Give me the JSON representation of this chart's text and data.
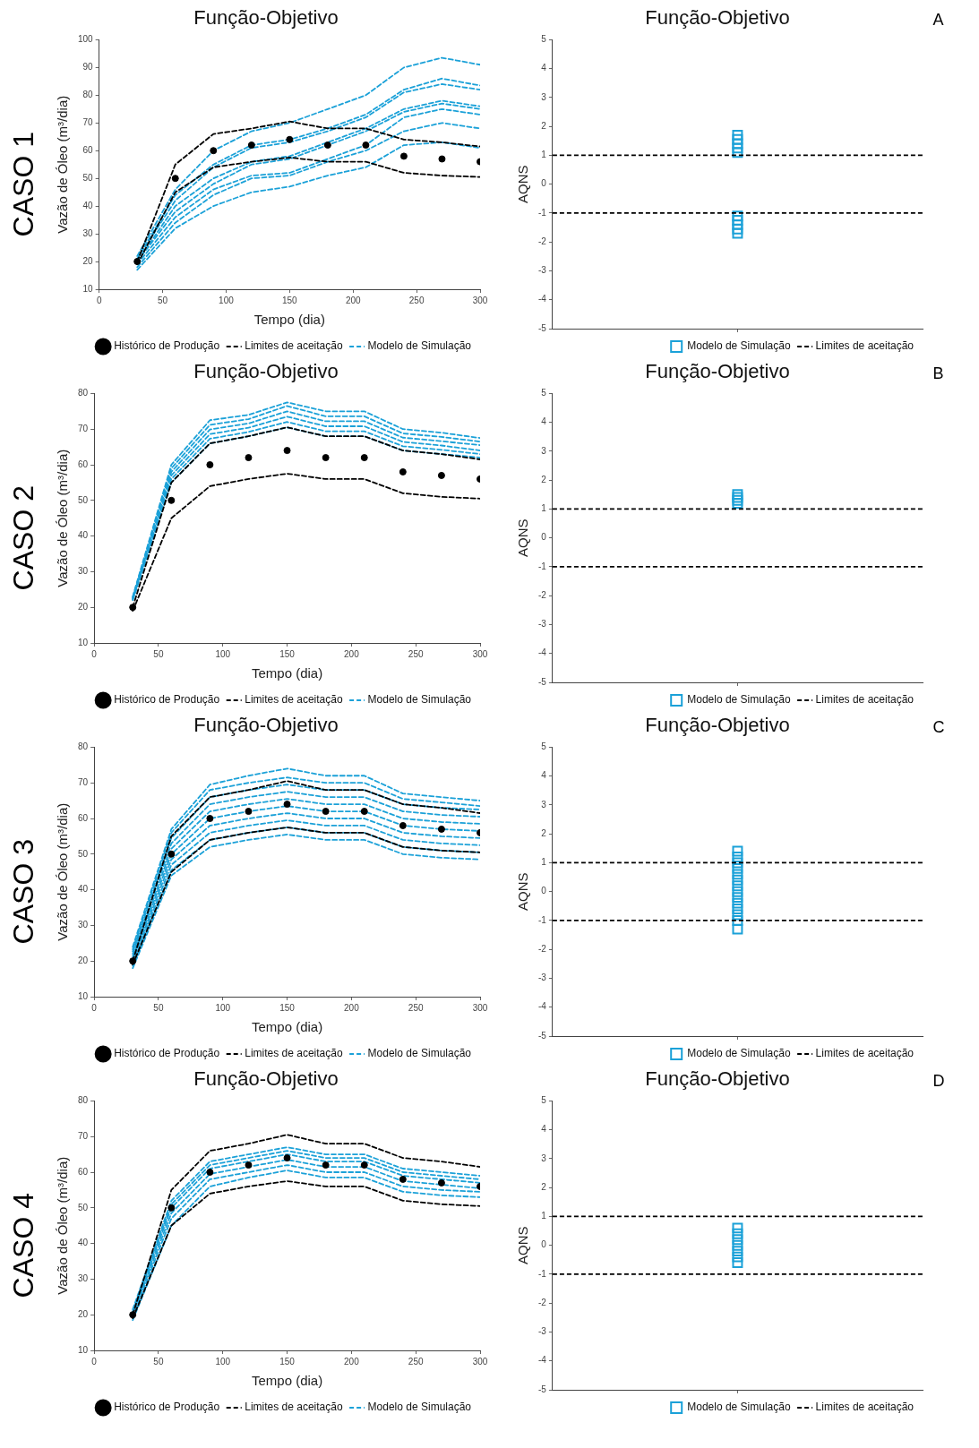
{
  "chart_data": [
    {
      "type": "line",
      "title": "Função-Objetivo",
      "xlabel": "Tempo (dia)",
      "ylabel": "Vazão de Óleo (m³/dia)",
      "annotations": [
        "CASO 1"
      ],
      "x": [
        30,
        60,
        90,
        120,
        150,
        180,
        210,
        240,
        270,
        300
      ],
      "xlim": [
        0,
        300
      ],
      "xticks": [
        0,
        50,
        100,
        150,
        200,
        250,
        300
      ],
      "ylim": [
        10,
        100
      ],
      "yticks": [
        10,
        20,
        30,
        40,
        50,
        60,
        70,
        80,
        90,
        100
      ],
      "grid": false,
      "legend": "bottom right",
      "series": [
        {
          "name": "Histórico de Produção",
          "type": "scatter",
          "marker": "circle",
          "color": "#000000",
          "values": [
            20,
            50,
            60,
            62,
            64,
            62,
            62,
            58,
            57,
            56
          ]
        },
        {
          "name": "Limites de aceitação",
          "line_style": "dashed",
          "color": "#000000",
          "values": [
            20,
            55,
            66,
            68,
            70.5,
            68,
            68,
            64,
            63,
            61.5
          ]
        },
        {
          "line_style": "dashed",
          "color": "#000000",
          "values": [
            19,
            45,
            54,
            56,
            57.5,
            56,
            56,
            52,
            51,
            50.5
          ]
        },
        {
          "name": "Modelo de Simulação",
          "line_style": "dashed",
          "color": "#1ba1d8",
          "values": [
            22,
            46,
            60,
            67,
            70,
            75,
            80,
            90,
            93.5,
            91
          ]
        },
        {
          "line_style": "dashed",
          "color": "#1ba1d8",
          "values": [
            21,
            44,
            55,
            62,
            64,
            68,
            73,
            82,
            86,
            83.5
          ]
        },
        {
          "line_style": "dashed",
          "color": "#1ba1d8",
          "values": [
            21,
            42,
            54,
            61,
            63,
            67,
            72,
            81,
            84,
            82
          ]
        },
        {
          "line_style": "dashed",
          "color": "#1ba1d8",
          "values": [
            20,
            40,
            50,
            56,
            58,
            63,
            68,
            75,
            78,
            76
          ]
        },
        {
          "line_style": "dashed",
          "color": "#1ba1d8",
          "values": [
            20,
            38,
            48,
            55,
            57,
            62,
            67,
            74,
            77,
            75
          ]
        },
        {
          "line_style": "dashed",
          "color": "#1ba1d8",
          "values": [
            19,
            36,
            46,
            51,
            52,
            57,
            62,
            72,
            75,
            73
          ]
        },
        {
          "line_style": "dashed",
          "color": "#1ba1d8",
          "values": [
            18,
            34,
            44,
            50,
            51,
            56,
            60,
            67,
            70,
            68
          ]
        },
        {
          "line_style": "dashed",
          "color": "#1ba1d8",
          "values": [
            17,
            32,
            40,
            45,
            47,
            51,
            54,
            62,
            63,
            61
          ]
        }
      ]
    },
    {
      "type": "scatter",
      "title": "Função-Objetivo",
      "ylabel": "AQNS",
      "annotations": [
        "A"
      ],
      "categories": [
        null
      ],
      "ylim": [
        -5,
        5
      ],
      "yticks": [
        -5,
        -4,
        -3,
        -2,
        -1,
        0,
        1,
        2,
        3,
        4,
        5
      ],
      "tick_labels": "y",
      "grid": false,
      "legend": "bottom right",
      "marker": "square",
      "ref_lines": [
        {
          "axis": "y",
          "value": 1,
          "label": "Limites de aceitação",
          "color": "#000000",
          "line_style": "dashed"
        },
        {
          "axis": "y",
          "value": -1,
          "color": "#000000",
          "line_style": "dashed"
        }
      ],
      "series": [
        {
          "name": "Modelo de Simulação",
          "color": "#1ba1d8",
          "values": [
            1.1
          ]
        },
        {
          "color": "#1ba1d8",
          "values": [
            1.25
          ]
        },
        {
          "color": "#1ba1d8",
          "values": [
            1.4
          ]
        },
        {
          "color": "#1ba1d8",
          "values": [
            1.55
          ]
        },
        {
          "color": "#1ba1d8",
          "values": [
            1.7
          ]
        },
        {
          "color": "#1ba1d8",
          "values": [
            -1.1
          ]
        },
        {
          "color": "#1ba1d8",
          "values": [
            -1.25
          ]
        },
        {
          "color": "#1ba1d8",
          "values": [
            -1.4
          ]
        },
        {
          "color": "#1ba1d8",
          "values": [
            -1.55
          ]
        },
        {
          "color": "#1ba1d8",
          "values": [
            -1.7
          ]
        }
      ]
    },
    {
      "type": "line",
      "title": "Função-Objetivo",
      "xlabel": "Tempo (dia)",
      "ylabel": "Vazão de Óleo (m³/dia)",
      "annotations": [
        "CASO 2"
      ],
      "x": [
        30,
        60,
        90,
        120,
        150,
        180,
        210,
        240,
        270,
        300
      ],
      "xlim": [
        0,
        300
      ],
      "xticks": [
        0,
        50,
        100,
        150,
        200,
        250,
        300
      ],
      "ylim": [
        10,
        80
      ],
      "yticks": [
        10,
        20,
        30,
        40,
        50,
        60,
        70,
        80
      ],
      "grid": false,
      "legend": "bottom right",
      "series": [
        {
          "name": "Histórico de Produção",
          "type": "scatter",
          "marker": "circle",
          "color": "#000000",
          "values": [
            20,
            50,
            60,
            62,
            64,
            62,
            62,
            58,
            57,
            56
          ]
        },
        {
          "name": "Limites de aceitação",
          "line_style": "dashed",
          "color": "#000000",
          "values": [
            20,
            55,
            66,
            68,
            70.5,
            68,
            68,
            64,
            63,
            61.5
          ]
        },
        {
          "line_style": "dashed",
          "color": "#000000",
          "values": [
            19,
            45,
            54,
            56,
            57.5,
            56,
            56,
            52,
            51,
            50.5
          ]
        },
        {
          "name": "Modelo de Simulação",
          "line_style": "dashed",
          "color": "#1ba1d8",
          "values": [
            22,
            55,
            66,
            68,
            70.5,
            68,
            68,
            64,
            63,
            62
          ]
        },
        {
          "line_style": "dashed",
          "color": "#1ba1d8",
          "values": [
            22.2,
            56,
            67.3,
            69.2,
            72,
            69.4,
            69.4,
            65.2,
            64.2,
            63
          ]
        },
        {
          "line_style": "dashed",
          "color": "#1ba1d8",
          "values": [
            22.4,
            57,
            68.6,
            70.4,
            73.5,
            70.8,
            70.8,
            66.4,
            65.4,
            64
          ]
        },
        {
          "line_style": "dashed",
          "color": "#1ba1d8",
          "values": [
            22.6,
            58,
            69.9,
            71.6,
            75,
            72.2,
            72.2,
            67.6,
            66.6,
            65.5
          ]
        },
        {
          "line_style": "dashed",
          "color": "#1ba1d8",
          "values": [
            22.8,
            59,
            71.2,
            72.8,
            76.5,
            73.6,
            73.6,
            68.8,
            67.8,
            66.5
          ]
        },
        {
          "line_style": "dashed",
          "color": "#1ba1d8",
          "values": [
            23,
            60,
            72.5,
            74,
            77.5,
            75,
            75,
            70,
            69,
            67.5
          ]
        }
      ]
    },
    {
      "type": "scatter",
      "title": "Função-Objetivo",
      "ylabel": "AQNS",
      "annotations": [
        "B"
      ],
      "categories": [
        null
      ],
      "ylim": [
        -5,
        5
      ],
      "yticks": [
        -5,
        -4,
        -3,
        -2,
        -1,
        0,
        1,
        2,
        3,
        4,
        5
      ],
      "tick_labels": "y",
      "grid": false,
      "legend": "bottom right",
      "marker": "square",
      "ref_lines": [
        {
          "axis": "y",
          "value": 1,
          "label": "Limites de aceitação",
          "color": "#000000",
          "line_style": "dashed"
        },
        {
          "axis": "y",
          "value": -1,
          "color": "#000000",
          "line_style": "dashed"
        }
      ],
      "series": [
        {
          "name": "Modelo de Simulação",
          "color": "#1ba1d8",
          "values": [
            1.2
          ]
        },
        {
          "color": "#1ba1d8",
          "values": [
            1.3
          ]
        },
        {
          "color": "#1ba1d8",
          "values": [
            1.4
          ]
        },
        {
          "color": "#1ba1d8",
          "values": [
            1.5
          ]
        }
      ]
    },
    {
      "type": "line",
      "title": "Função-Objetivo",
      "xlabel": "Tempo (dia)",
      "ylabel": "Vazão de Óleo (m³/dia)",
      "annotations": [
        "CASO 3"
      ],
      "x": [
        30,
        60,
        90,
        120,
        150,
        180,
        210,
        240,
        270,
        300
      ],
      "xlim": [
        0,
        300
      ],
      "xticks": [
        0,
        50,
        100,
        150,
        200,
        250,
        300
      ],
      "ylim": [
        10,
        80
      ],
      "yticks": [
        10,
        20,
        30,
        40,
        50,
        60,
        70,
        80
      ],
      "grid": false,
      "legend": "bottom right",
      "series": [
        {
          "name": "Histórico de Produção",
          "type": "scatter",
          "marker": "circle",
          "color": "#000000",
          "values": [
            20,
            50,
            60,
            62,
            64,
            62,
            62,
            58,
            57,
            56
          ]
        },
        {
          "name": "Limites de aceitação",
          "line_style": "dashed",
          "color": "#000000",
          "values": [
            20,
            55,
            66,
            68,
            70.5,
            68,
            68,
            64,
            63,
            61.5
          ]
        },
        {
          "line_style": "dashed",
          "color": "#000000",
          "values": [
            19,
            45,
            54,
            56,
            57.5,
            56,
            56,
            52,
            51,
            50.5
          ]
        },
        {
          "name": "Modelo de Simulação",
          "line_style": "dashed",
          "color": "#1ba1d8",
          "values": [
            18,
            44,
            52,
            54,
            55.5,
            54,
            54,
            50,
            49,
            48.5
          ]
        },
        {
          "line_style": "dashed",
          "color": "#1ba1d8",
          "values": [
            18.7,
            45.5,
            54,
            56,
            57.5,
            56,
            56,
            52,
            51,
            50.5
          ]
        },
        {
          "line_style": "dashed",
          "color": "#1ba1d8",
          "values": [
            19.3,
            47,
            56,
            58,
            59.5,
            58,
            58,
            54,
            53,
            52.5
          ]
        },
        {
          "line_style": "dashed",
          "color": "#1ba1d8",
          "values": [
            20,
            48.5,
            58,
            60,
            61.5,
            60,
            60,
            56,
            55,
            54.5
          ]
        },
        {
          "line_style": "dashed",
          "color": "#1ba1d8",
          "values": [
            20.7,
            50,
            60,
            62,
            63.5,
            62,
            62,
            58,
            57,
            56.5
          ]
        },
        {
          "line_style": "dashed",
          "color": "#1ba1d8",
          "values": [
            21.3,
            51.5,
            62,
            64,
            65.5,
            64,
            64,
            60,
            59,
            58.5
          ]
        },
        {
          "line_style": "dashed",
          "color": "#1ba1d8",
          "values": [
            22,
            53,
            64,
            66,
            67.5,
            66,
            66,
            62,
            61,
            60.5
          ]
        },
        {
          "line_style": "dashed",
          "color": "#1ba1d8",
          "values": [
            22.7,
            54.5,
            66,
            68,
            69.5,
            68,
            68,
            64,
            63,
            62.5
          ]
        },
        {
          "line_style": "dashed",
          "color": "#1ba1d8",
          "values": [
            23.3,
            56,
            68,
            70,
            71.5,
            70,
            70,
            65.5,
            64.5,
            63.5
          ]
        },
        {
          "line_style": "dashed",
          "color": "#1ba1d8",
          "values": [
            24,
            57,
            69.5,
            72,
            74,
            72,
            72,
            67,
            66,
            65
          ]
        }
      ]
    },
    {
      "type": "scatter",
      "title": "Função-Objetivo",
      "ylabel": "AQNS",
      "annotations": [
        "C"
      ],
      "categories": [
        null
      ],
      "ylim": [
        -5,
        5
      ],
      "yticks": [
        -5,
        -4,
        -3,
        -2,
        -1,
        0,
        1,
        2,
        3,
        4,
        5
      ],
      "tick_labels": "y",
      "grid": false,
      "legend": "bottom right",
      "marker": "square",
      "ref_lines": [
        {
          "axis": "y",
          "value": 1,
          "label": "Limites de aceitação",
          "color": "#000000",
          "line_style": "dashed"
        },
        {
          "axis": "y",
          "value": -1,
          "color": "#000000",
          "line_style": "dashed"
        }
      ],
      "series": [
        {
          "name": "Modelo de Simulação",
          "color": "#1ba1d8",
          "values": [
            -1.3
          ]
        },
        {
          "color": "#1ba1d8",
          "values": [
            -1
          ]
        },
        {
          "color": "#1ba1d8",
          "values": [
            -0.8
          ]
        },
        {
          "color": "#1ba1d8",
          "values": [
            -0.6
          ]
        },
        {
          "color": "#1ba1d8",
          "values": [
            -0.4
          ]
        },
        {
          "color": "#1ba1d8",
          "values": [
            -0.2
          ]
        },
        {
          "color": "#1ba1d8",
          "values": [
            0
          ]
        },
        {
          "color": "#1ba1d8",
          "values": [
            0.2
          ]
        },
        {
          "color": "#1ba1d8",
          "values": [
            0.4
          ]
        },
        {
          "color": "#1ba1d8",
          "values": [
            0.6
          ]
        },
        {
          "color": "#1ba1d8",
          "values": [
            0.8
          ]
        },
        {
          "color": "#1ba1d8",
          "values": [
            1
          ]
        },
        {
          "color": "#1ba1d8",
          "values": [
            1.2
          ]
        },
        {
          "color": "#1ba1d8",
          "values": [
            1.4
          ]
        }
      ]
    },
    {
      "type": "line",
      "title": "Função-Objetivo",
      "xlabel": "Tempo (dia)",
      "ylabel": "Vazão de Óleo (m³/dia)",
      "annotations": [
        "CASO 4"
      ],
      "x": [
        30,
        60,
        90,
        120,
        150,
        180,
        210,
        240,
        270,
        300
      ],
      "xlim": [
        0,
        300
      ],
      "xticks": [
        0,
        50,
        100,
        150,
        200,
        250,
        300
      ],
      "ylim": [
        10,
        80
      ],
      "yticks": [
        10,
        20,
        30,
        40,
        50,
        60,
        70,
        80
      ],
      "grid": false,
      "legend": "bottom right",
      "series": [
        {
          "name": "Histórico de Produção",
          "type": "scatter",
          "marker": "circle",
          "color": "#000000",
          "values": [
            20,
            50,
            60,
            62,
            64,
            62,
            62,
            58,
            57,
            56
          ]
        },
        {
          "name": "Limites de aceitação",
          "line_style": "dashed",
          "color": "#000000",
          "values": [
            20,
            55,
            66,
            68,
            70.5,
            68,
            68,
            64,
            63,
            61.5
          ]
        },
        {
          "line_style": "dashed",
          "color": "#000000",
          "values": [
            19,
            45,
            54,
            56,
            57.5,
            56,
            56,
            52,
            51,
            50.5
          ]
        },
        {
          "name": "Modelo de Simulação",
          "line_style": "dashed",
          "color": "#1ba1d8",
          "values": [
            18.5,
            45,
            56,
            58.5,
            60.5,
            58.5,
            58.5,
            54.5,
            53.5,
            53
          ]
        },
        {
          "line_style": "dashed",
          "color": "#1ba1d8",
          "values": [
            19.5,
            47,
            58,
            60,
            62,
            60,
            60,
            56,
            55,
            54.5
          ]
        },
        {
          "line_style": "dashed",
          "color": "#1ba1d8",
          "values": [
            20.2,
            48.5,
            59.5,
            61.5,
            63.5,
            61.5,
            61.5,
            57.5,
            56.5,
            55.5
          ]
        },
        {
          "line_style": "dashed",
          "color": "#1ba1d8",
          "values": [
            20.6,
            50,
            61,
            63,
            65,
            63,
            63,
            59,
            58,
            57
          ]
        },
        {
          "line_style": "dashed",
          "color": "#1ba1d8",
          "values": [
            21,
            51,
            62,
            64,
            66,
            64,
            64,
            60,
            59,
            58
          ]
        },
        {
          "line_style": "dashed",
          "color": "#1ba1d8",
          "values": [
            21.5,
            52,
            63,
            65,
            67,
            65,
            65,
            61,
            60,
            59
          ]
        }
      ]
    },
    {
      "type": "scatter",
      "title": "Função-Objetivo",
      "ylabel": "AQNS",
      "annotations": [
        "D"
      ],
      "categories": [
        null
      ],
      "ylim": [
        -5,
        5
      ],
      "yticks": [
        -5,
        -4,
        -3,
        -2,
        -1,
        0,
        1,
        2,
        3,
        4,
        5
      ],
      "tick_labels": "y",
      "grid": false,
      "legend": "bottom right",
      "marker": "square",
      "ref_lines": [
        {
          "axis": "y",
          "value": 1,
          "label": "Limites de aceitação",
          "color": "#000000",
          "line_style": "dashed"
        },
        {
          "axis": "y",
          "value": -1,
          "color": "#000000",
          "line_style": "dashed"
        }
      ],
      "series": [
        {
          "name": "Modelo de Simulação",
          "color": "#1ba1d8",
          "values": [
            -0.6
          ]
        },
        {
          "color": "#1ba1d8",
          "values": [
            -0.4
          ]
        },
        {
          "color": "#1ba1d8",
          "values": [
            -0.2
          ]
        },
        {
          "color": "#1ba1d8",
          "values": [
            0
          ]
        },
        {
          "color": "#1ba1d8",
          "values": [
            0.2
          ]
        },
        {
          "color": "#1ba1d8",
          "values": [
            0.4
          ]
        },
        {
          "color": "#1ba1d8",
          "values": [
            0.6
          ]
        }
      ]
    }
  ]
}
